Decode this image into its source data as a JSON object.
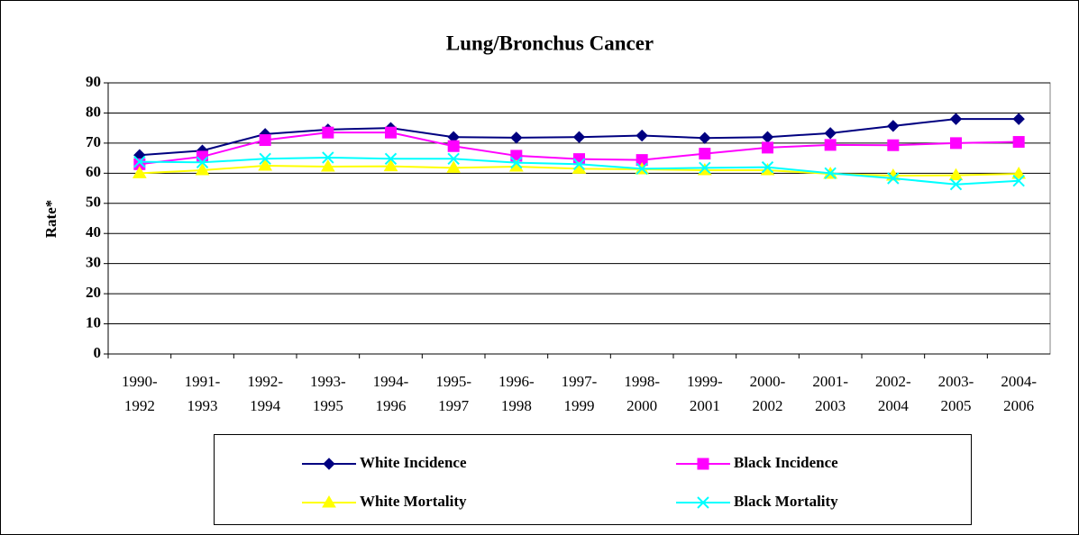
{
  "chart_data": {
    "type": "line",
    "title": "Lung/Bronchus Cancer",
    "y_label": "Rate*",
    "categories": [
      "1990-1992",
      "1991-1993",
      "1992-1994",
      "1993-1995",
      "1994-1996",
      "1995-1997",
      "1996-1998",
      "1997-1999",
      "1998-2000",
      "1999-2001",
      "2000-2002",
      "2001-2003",
      "2002-2004",
      "2003-2005",
      "2004-2006"
    ],
    "series": [
      {
        "name": "White Incidence",
        "color": "#000080",
        "marker": "diamond",
        "values": [
          66,
          67.5,
          73,
          74.5,
          75,
          72,
          71.8,
          72,
          72.5,
          71.7,
          72,
          73.3,
          75.7,
          78,
          78
        ]
      },
      {
        "name": "Black Incidence",
        "color": "#ff00ff",
        "marker": "square",
        "values": [
          63,
          65.5,
          71,
          73.5,
          73.5,
          69,
          65.8,
          64.7,
          64.4,
          66.5,
          68.5,
          69.4,
          69.3,
          70,
          70.4
        ]
      },
      {
        "name": "White Mortality",
        "color": "#ffff00",
        "marker": "triangle",
        "values": [
          60,
          61,
          62.5,
          62.2,
          62.3,
          61.8,
          62.2,
          61.5,
          61.3,
          61,
          61,
          59.8,
          59.2,
          59.3,
          59.8
        ]
      },
      {
        "name": "Black Mortality",
        "color": "#00ffff",
        "marker": "x",
        "values": [
          63.8,
          63.6,
          64.8,
          65.2,
          64.8,
          64.8,
          63.5,
          63,
          61.5,
          61.8,
          62,
          60,
          58.3,
          56.3,
          57.5
        ]
      }
    ],
    "ylim": [
      0,
      90
    ],
    "yticks": [
      0,
      10,
      20,
      30,
      40,
      50,
      60,
      70,
      80,
      90
    ],
    "grid": true,
    "legend": "bottom"
  }
}
